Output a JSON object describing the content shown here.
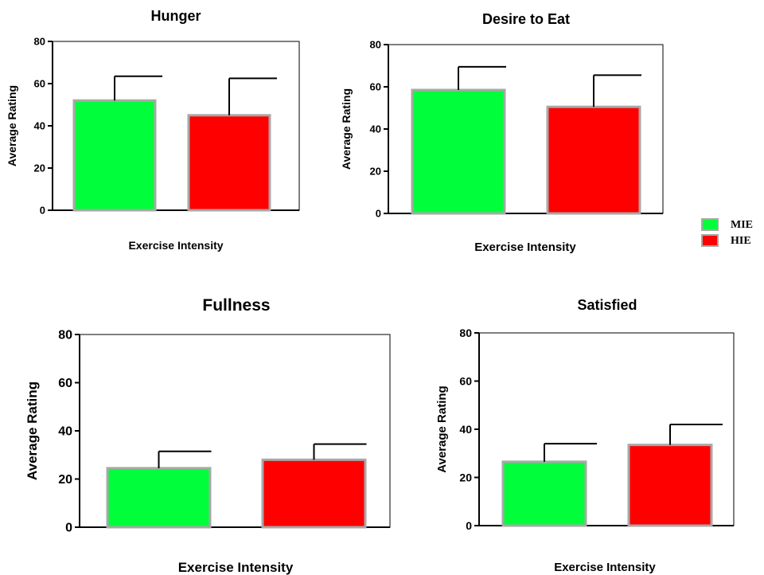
{
  "legend": {
    "items": [
      {
        "label": "MIE",
        "color": "#00ff3a"
      },
      {
        "label": "HIE",
        "color": "#ff0000"
      }
    ]
  },
  "colors": {
    "bar_border": "#a8a8a8",
    "mie": "#00ff3a",
    "hie": "#ff0000"
  },
  "chart_data": [
    {
      "type": "bar",
      "title": "Hunger",
      "xlabel": "Exercise Intensity",
      "ylabel": "Average Rating",
      "ylim": [
        0,
        80
      ],
      "yticks": [
        "0",
        "20",
        "40",
        "60",
        "80"
      ],
      "categories": [
        "MIE",
        "HIE"
      ],
      "values": [
        52,
        45
      ],
      "errors": [
        11.5,
        17.5
      ]
    },
    {
      "type": "bar",
      "title": "Desire to Eat",
      "xlabel": "Exercise Intensity",
      "ylabel": "Average Rating",
      "ylim": [
        0,
        80
      ],
      "yticks": [
        "0",
        "20",
        "40",
        "60",
        "80"
      ],
      "categories": [
        "MIE",
        "HIE"
      ],
      "values": [
        58.5,
        50.5
      ],
      "errors": [
        11,
        15
      ]
    },
    {
      "type": "bar",
      "title": "Fullness",
      "xlabel": "Exercise Intensity",
      "ylabel": "Average Rating",
      "ylim": [
        0,
        80
      ],
      "yticks": [
        "0",
        "20",
        "40",
        "60",
        "80"
      ],
      "categories": [
        "MIE",
        "HIE"
      ],
      "values": [
        24.5,
        28
      ],
      "errors": [
        7,
        6.5
      ]
    },
    {
      "type": "bar",
      "title": "Satisfied",
      "xlabel": "Exercise Intensity",
      "ylabel": "Average Rating",
      "ylim": [
        0,
        80
      ],
      "yticks": [
        "0",
        "20",
        "40",
        "60",
        "80"
      ],
      "categories": [
        "MIE",
        "HIE"
      ],
      "values": [
        26.5,
        33.5
      ],
      "errors": [
        7.5,
        8.5
      ]
    }
  ]
}
